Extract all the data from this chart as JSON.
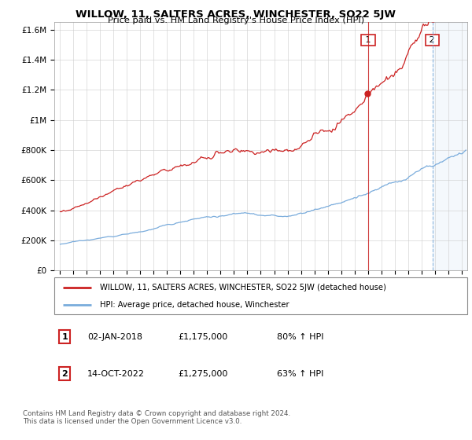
{
  "title": "WILLOW, 11, SALTERS ACRES, WINCHESTER, SO22 5JW",
  "subtitle": "Price paid vs. HM Land Registry's House Price Index (HPI)",
  "ytick_vals": [
    0,
    200000,
    400000,
    600000,
    800000,
    1000000,
    1200000,
    1400000,
    1600000
  ],
  "ytick_labels": [
    "£0",
    "£200K",
    "£400K",
    "£600K",
    "£800K",
    "£1M",
    "£1.2M",
    "£1.4M",
    "£1.6M"
  ],
  "sale1_x": 2018.0,
  "sale1_price": 1175000,
  "sale2_x": 2022.79,
  "sale2_price": 1275000,
  "red_color": "#cc2222",
  "blue_color": "#7aacdc",
  "legend_label_red": "WILLOW, 11, SALTERS ACRES, WINCHESTER, SO22 5JW (detached house)",
  "legend_label_blue": "HPI: Average price, detached house, Winchester",
  "footer": "Contains HM Land Registry data © Crown copyright and database right 2024.\nThis data is licensed under the Open Government Licence v3.0.",
  "table_rows": [
    {
      "num": "1",
      "date": "02-JAN-2018",
      "price": "£1,175,000",
      "hpi": "80% ↑ HPI"
    },
    {
      "num": "2",
      "date": "14-OCT-2022",
      "price": "£1,275,000",
      "hpi": "63% ↑ HPI"
    }
  ]
}
